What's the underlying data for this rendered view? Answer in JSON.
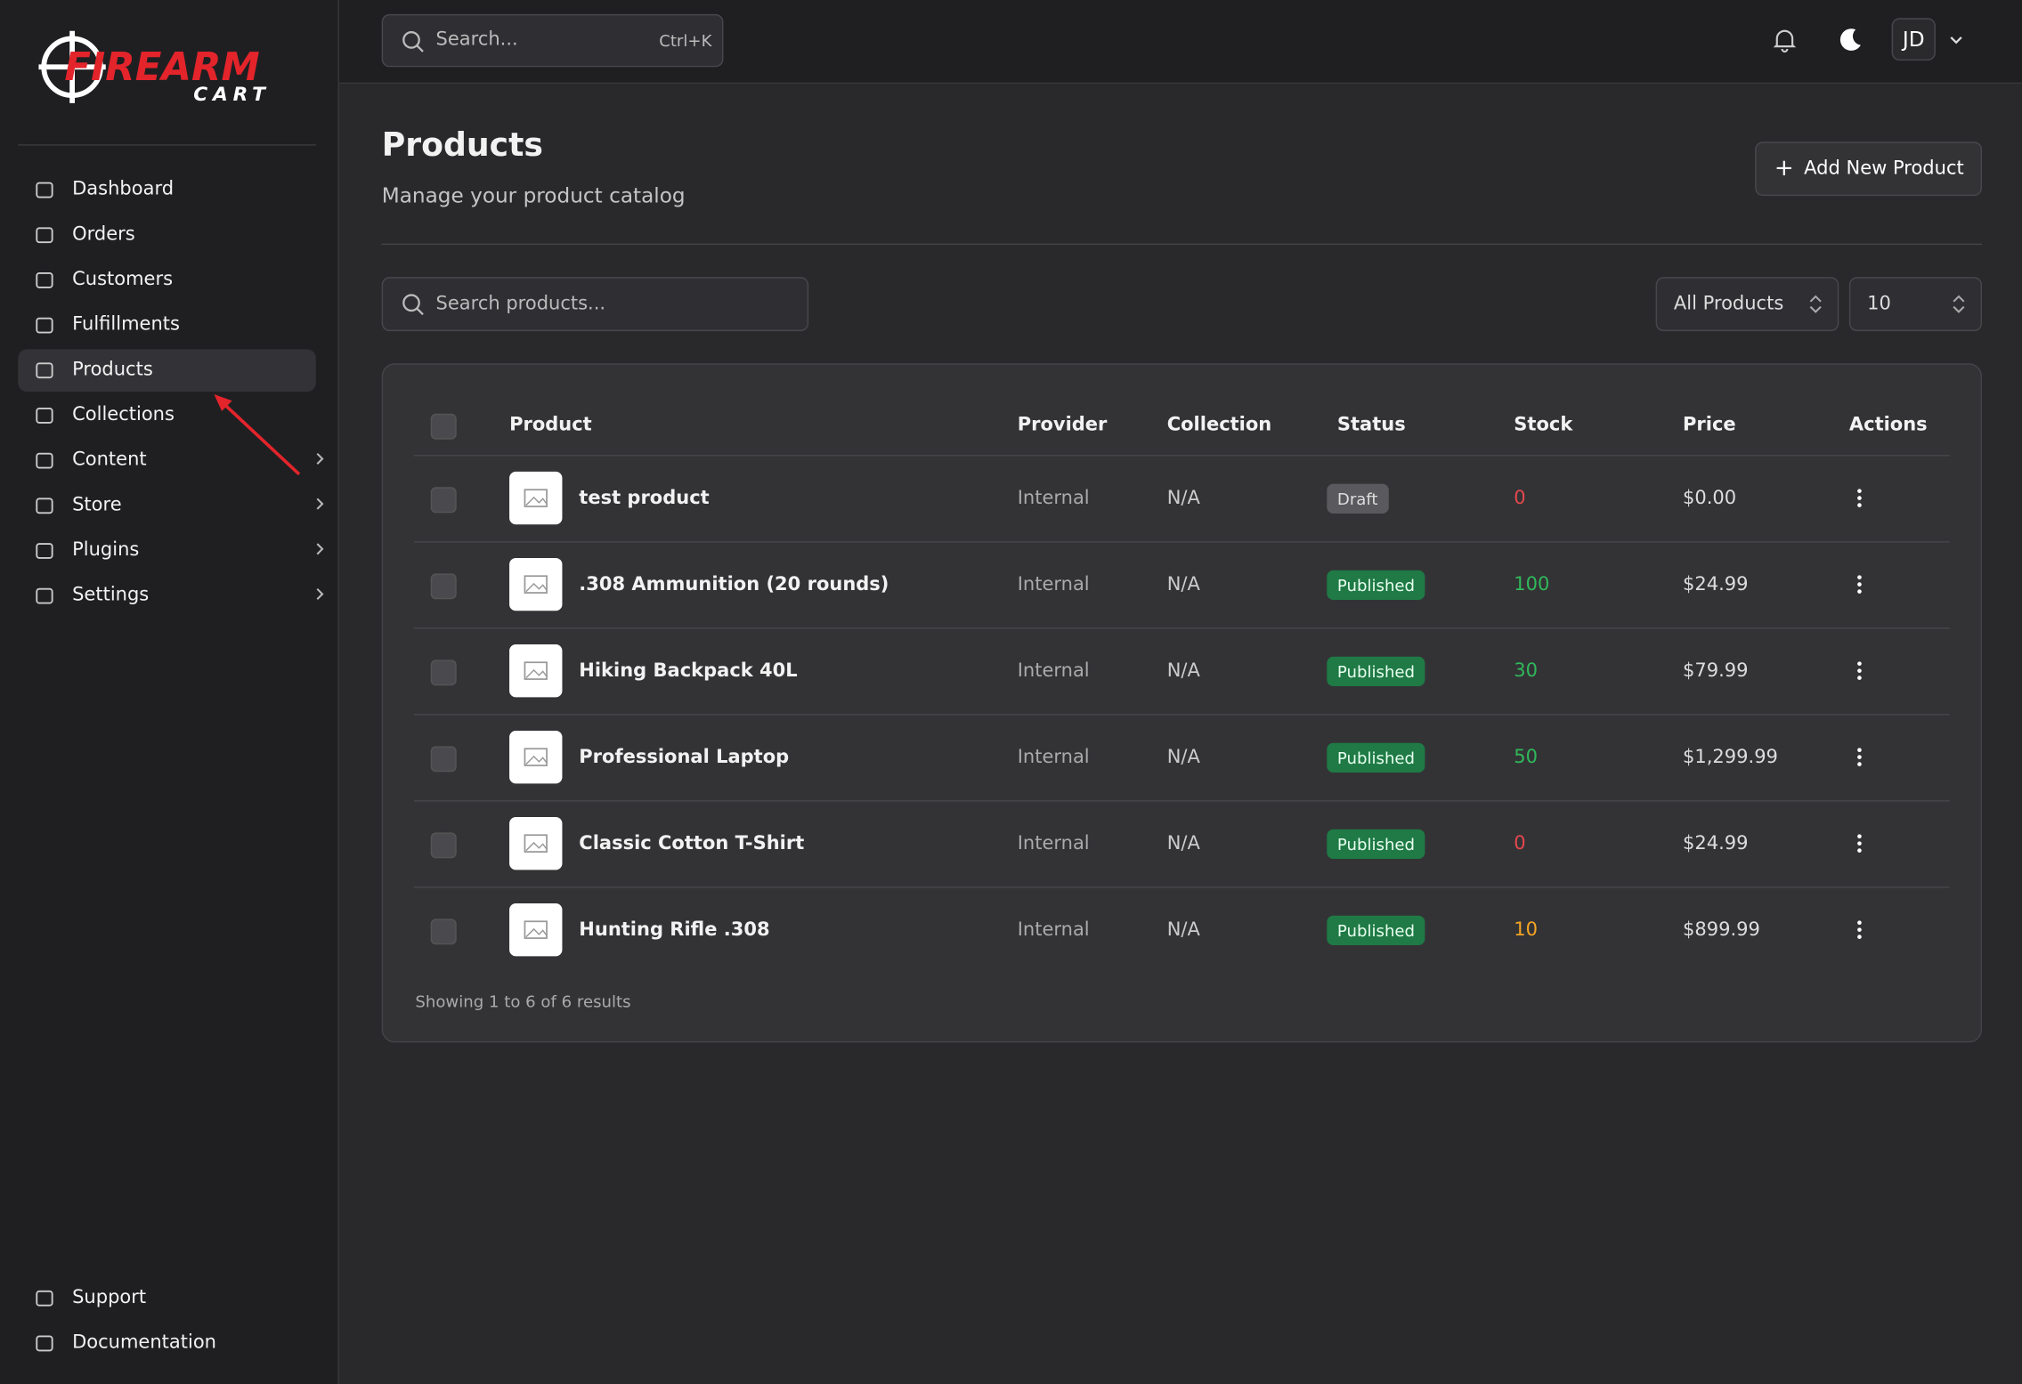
{
  "logo": {
    "line1": "FIREARM",
    "line2": "CART"
  },
  "sidebar": {
    "nav": [
      {
        "label": "Dashboard"
      },
      {
        "label": "Orders"
      },
      {
        "label": "Customers"
      },
      {
        "label": "Fulfillments"
      },
      {
        "label": "Products",
        "active": true
      },
      {
        "label": "Collections"
      },
      {
        "label": "Content",
        "submenu": true
      },
      {
        "label": "Store",
        "submenu": true
      },
      {
        "label": "Plugins",
        "submenu": true
      },
      {
        "label": "Settings",
        "submenu": true
      }
    ],
    "footer": [
      {
        "label": "Support"
      },
      {
        "label": "Documentation"
      }
    ]
  },
  "header": {
    "search_placeholder": "Search...",
    "shortcut": "Ctrl+K",
    "avatar": "JD"
  },
  "page": {
    "title": "Products",
    "subtitle": "Manage your product catalog",
    "add_button": "Add New Product"
  },
  "filters": {
    "search_placeholder": "Search products...",
    "status_filter": "All Products",
    "page_size": "10"
  },
  "table": {
    "columns": [
      "Product",
      "Provider",
      "Collection",
      "Status",
      "Stock",
      "Price",
      "Actions"
    ],
    "rows": [
      {
        "product": "test product",
        "provider": "Internal",
        "collection": "N/A",
        "status": "Draft",
        "stock": 0,
        "price": "$0.00"
      },
      {
        "product": ".308 Ammunition (20 rounds)",
        "provider": "Internal",
        "collection": "N/A",
        "status": "Published",
        "stock": 100,
        "price": "$24.99"
      },
      {
        "product": "Hiking Backpack 40L",
        "provider": "Internal",
        "collection": "N/A",
        "status": "Published",
        "stock": 30,
        "price": "$79.99"
      },
      {
        "product": "Professional Laptop",
        "provider": "Internal",
        "collection": "N/A",
        "status": "Published",
        "stock": 50,
        "price": "$1,299.99"
      },
      {
        "product": "Classic Cotton T-Shirt",
        "provider": "Internal",
        "collection": "N/A",
        "status": "Published",
        "stock": 0,
        "price": "$24.99"
      },
      {
        "product": "Hunting Rifle .308",
        "provider": "Internal",
        "collection": "N/A",
        "status": "Published",
        "stock": 10,
        "price": "$899.99"
      }
    ],
    "footer": "Showing 1 to 6 of 6 results"
  }
}
